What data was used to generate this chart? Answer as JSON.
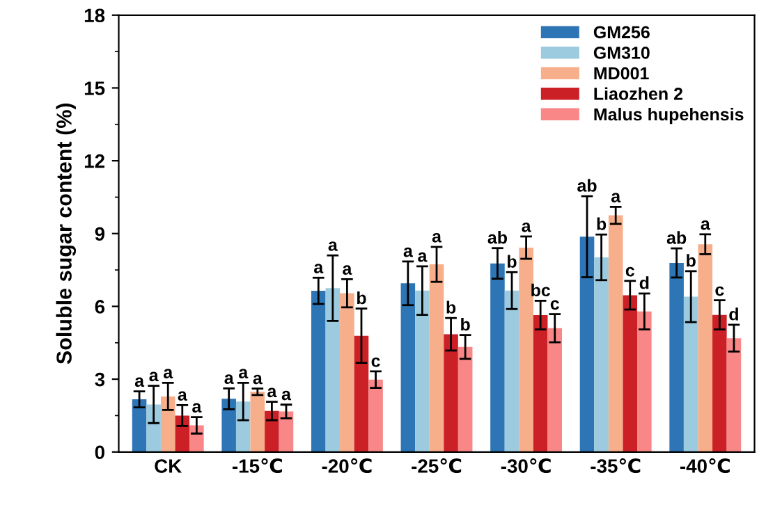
{
  "chart_data": {
    "type": "bar",
    "ylabel": "Soluble sugar content (%)",
    "categories": [
      "CK",
      "-15℃",
      "-20℃",
      "-25℃",
      "-30℃",
      "-35℃",
      "-40℃"
    ],
    "series": [
      {
        "name": "GM256",
        "color": "#2e75b6",
        "values": [
          2.17,
          2.19,
          6.64,
          6.95,
          7.77,
          8.87,
          7.79
        ],
        "errors": [
          0.33,
          0.43,
          0.54,
          0.9,
          0.63,
          1.67,
          0.6
        ],
        "value_labels": [
          "a",
          "a",
          "a",
          "a",
          "ab",
          "ab",
          "ab"
        ]
      },
      {
        "name": "GM310",
        "color": "#9ccbe0",
        "values": [
          1.96,
          2.08,
          6.75,
          6.65,
          6.65,
          8.02,
          6.4
        ],
        "errors": [
          0.77,
          0.77,
          1.35,
          1.0,
          0.76,
          0.94,
          1.05
        ],
        "value_labels": [
          "a",
          "a",
          "a",
          "a",
          "b",
          "b",
          "b"
        ]
      },
      {
        "name": "MD001",
        "color": "#f7ae8b",
        "values": [
          2.29,
          2.48,
          6.54,
          7.73,
          8.42,
          9.75,
          8.56
        ],
        "errors": [
          0.56,
          0.13,
          0.58,
          0.72,
          0.46,
          0.35,
          0.41
        ],
        "value_labels": [
          "a",
          "a",
          "a",
          "a",
          "a",
          "a",
          "a"
        ]
      },
      {
        "name": "Liaozhen 2",
        "color": "#cc2027",
        "values": [
          1.5,
          1.69,
          4.79,
          4.85,
          5.64,
          6.46,
          5.65
        ],
        "errors": [
          0.43,
          0.38,
          1.12,
          0.67,
          0.59,
          0.59,
          0.6
        ],
        "value_labels": [
          "a",
          "a",
          "b",
          "b",
          "bc",
          "c",
          "c"
        ]
      },
      {
        "name": "Malus hupehensis",
        "color": "#f98787",
        "values": [
          1.1,
          1.67,
          2.98,
          4.33,
          5.1,
          5.79,
          4.69
        ],
        "errors": [
          0.34,
          0.28,
          0.34,
          0.49,
          0.58,
          0.74,
          0.55
        ],
        "value_labels": [
          "a",
          "a",
          "c",
          "b",
          "c",
          "d",
          "d"
        ]
      }
    ],
    "ylim": [
      0,
      18
    ],
    "yticks": [
      0,
      3,
      6,
      9,
      12,
      15,
      18
    ],
    "legend": "top right",
    "grid": false
  }
}
